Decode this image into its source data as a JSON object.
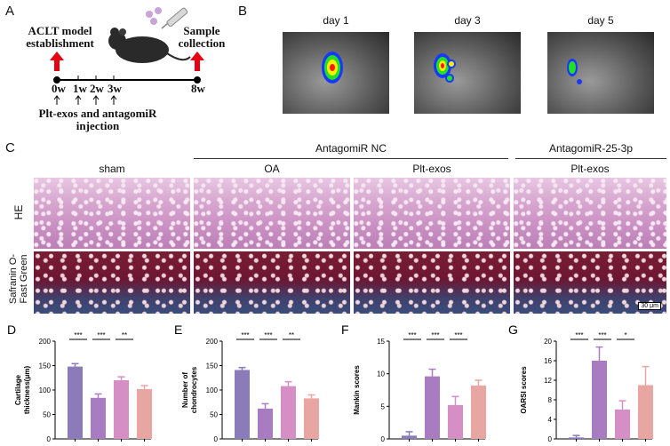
{
  "panels": {
    "A": {
      "letter": "A",
      "left_caption": "ACLT model\nestablishment",
      "right_caption": "Sample\ncollection",
      "timeline": [
        "0w",
        "1w",
        "2w",
        "3w",
        "8w"
      ],
      "bottom_caption": "Plt-exos and antagomiR\ninjection"
    },
    "B": {
      "letter": "B",
      "days": [
        "day 1",
        "day 3",
        "day 5"
      ]
    },
    "C": {
      "letter": "C",
      "group_headers": [
        "AntagomiR NC",
        "AntagomiR-25-3p"
      ],
      "columns": [
        "sham",
        "OA",
        "Plt-exos",
        "Plt-exos"
      ],
      "rows": [
        "HE",
        "Safranin O-\nFast Green"
      ],
      "scalebar": "30 μm"
    }
  },
  "colors": {
    "c1": "#8b7bb9",
    "c2": "#a97bc0",
    "c3": "#d68fc4",
    "c4": "#e7a6a1"
  },
  "chart_data": [
    {
      "type": "bar",
      "panel": "D",
      "ylabel": "Cartilage\nthickness(μm)",
      "ylim": [
        0,
        200
      ],
      "ticks": [
        0,
        50,
        100,
        150,
        200
      ],
      "values": [
        148,
        84,
        120,
        102
      ],
      "errors": [
        6,
        8,
        7,
        7
      ],
      "sig": [
        "***",
        "***",
        "**"
      ]
    },
    {
      "type": "bar",
      "panel": "E",
      "ylabel": "Number of\nchondrocytes",
      "ylim": [
        0,
        200
      ],
      "ticks": [
        0,
        50,
        100,
        150,
        200
      ],
      "values": [
        141,
        62,
        108,
        83
      ],
      "errors": [
        5,
        10,
        9,
        7
      ],
      "sig": [
        "***",
        "***",
        "**"
      ]
    },
    {
      "type": "bar",
      "panel": "F",
      "ylabel": "Mankin scores",
      "ylim": [
        0,
        15
      ],
      "ticks": [
        0,
        5,
        10,
        15
      ],
      "values": [
        0.5,
        9.6,
        5.2,
        8.2
      ],
      "errors": [
        0.6,
        1.1,
        1.3,
        0.8
      ],
      "sig": [
        "***",
        "***",
        "***"
      ]
    },
    {
      "type": "bar",
      "panel": "G",
      "ylabel": "OARSI scores",
      "ylim": [
        0,
        20
      ],
      "ticks": [
        0,
        4,
        8,
        12,
        16,
        20
      ],
      "values": [
        0.3,
        16,
        6,
        11
      ],
      "errors": [
        0.4,
        2.8,
        1.8,
        3.8
      ],
      "sig": [
        "***",
        "***",
        "*"
      ]
    }
  ]
}
